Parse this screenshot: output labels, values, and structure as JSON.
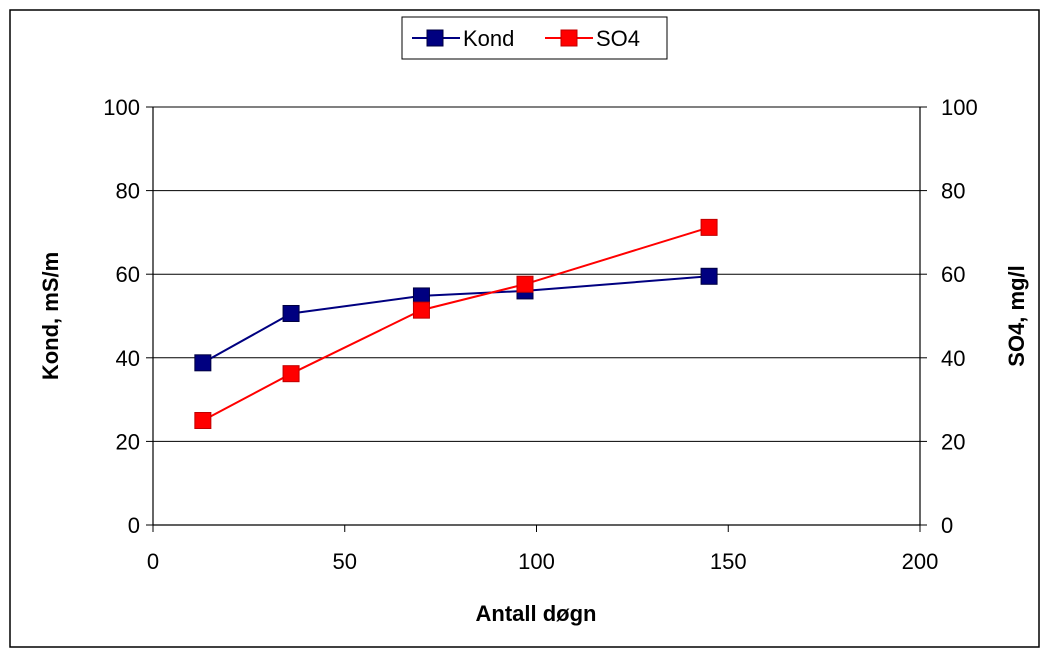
{
  "chart_data": {
    "type": "line",
    "title": "",
    "xlabel": "Antall døgn",
    "ylabel": "Kond, mS/m",
    "y2label": "SO4, mg/l",
    "xlim": [
      0,
      200
    ],
    "ylim": [
      0,
      100
    ],
    "y2lim": [
      0,
      100
    ],
    "x_ticks": [
      "0",
      "50",
      "100",
      "150",
      "200"
    ],
    "y_ticks": [
      "0",
      "20",
      "40",
      "60",
      "80",
      "100"
    ],
    "y2_ticks": [
      "0",
      "20",
      "40",
      "60",
      "80",
      "100"
    ],
    "grid": "horizontal",
    "legend_position": "top-center",
    "series": [
      {
        "name": "Kond",
        "axis": "left",
        "color": "#000080",
        "marker": "square",
        "x": [
          13,
          36,
          70,
          97,
          145
        ],
        "y": [
          38.8,
          50.6,
          54.8,
          56.0,
          59.5
        ]
      },
      {
        "name": "SO4",
        "axis": "right",
        "color": "#FF0000",
        "marker": "square",
        "x": [
          13,
          36,
          70,
          97,
          145
        ],
        "y": [
          25.0,
          36.2,
          51.4,
          57.6,
          71.2
        ]
      }
    ]
  }
}
